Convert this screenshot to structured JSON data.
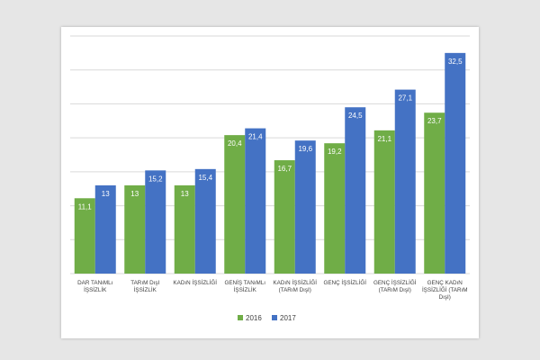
{
  "chart_data": {
    "type": "bar",
    "title": "",
    "xlabel": "",
    "ylabel": "",
    "ylim": [
      0,
      35
    ],
    "grid": true,
    "legend_position": "bottom",
    "categories": [
      [
        "DAR TANıMLı",
        "İŞSİZLİK"
      ],
      [
        "TARıM DışI",
        "İŞSİZLİK"
      ],
      [
        "KADıN İŞSİZLİĞİ"
      ],
      [
        "GENİŞ TANıMLı",
        "İŞSİZLİK"
      ],
      [
        "KADıN İŞSİZLİĞİ",
        "(TARıM DışI)"
      ],
      [
        "GENÇ İŞSİZLİĞİ"
      ],
      [
        "GENÇ İŞSİZLİĞİ",
        "(TARıM DışI)"
      ],
      [
        "GENÇ KADıN",
        "İŞSİZLİĞİ (TARıM",
        "DışI)"
      ]
    ],
    "series": [
      {
        "name": "2016",
        "color": "#70ad47",
        "values": [
          11.1,
          13,
          13,
          20.4,
          16.7,
          19.2,
          21.1,
          23.7
        ],
        "labels": [
          "11,1",
          "13",
          "13",
          "20,4",
          "16,7",
          "19,2",
          "21,1",
          "23,7"
        ]
      },
      {
        "name": "2017",
        "color": "#4472c4",
        "values": [
          13,
          15.2,
          15.4,
          21.4,
          19.6,
          24.5,
          27.1,
          32.5
        ],
        "labels": [
          "13",
          "15,2",
          "15,4",
          "21,4",
          "19,6",
          "24,5",
          "27,1",
          "32,5"
        ]
      }
    ]
  }
}
